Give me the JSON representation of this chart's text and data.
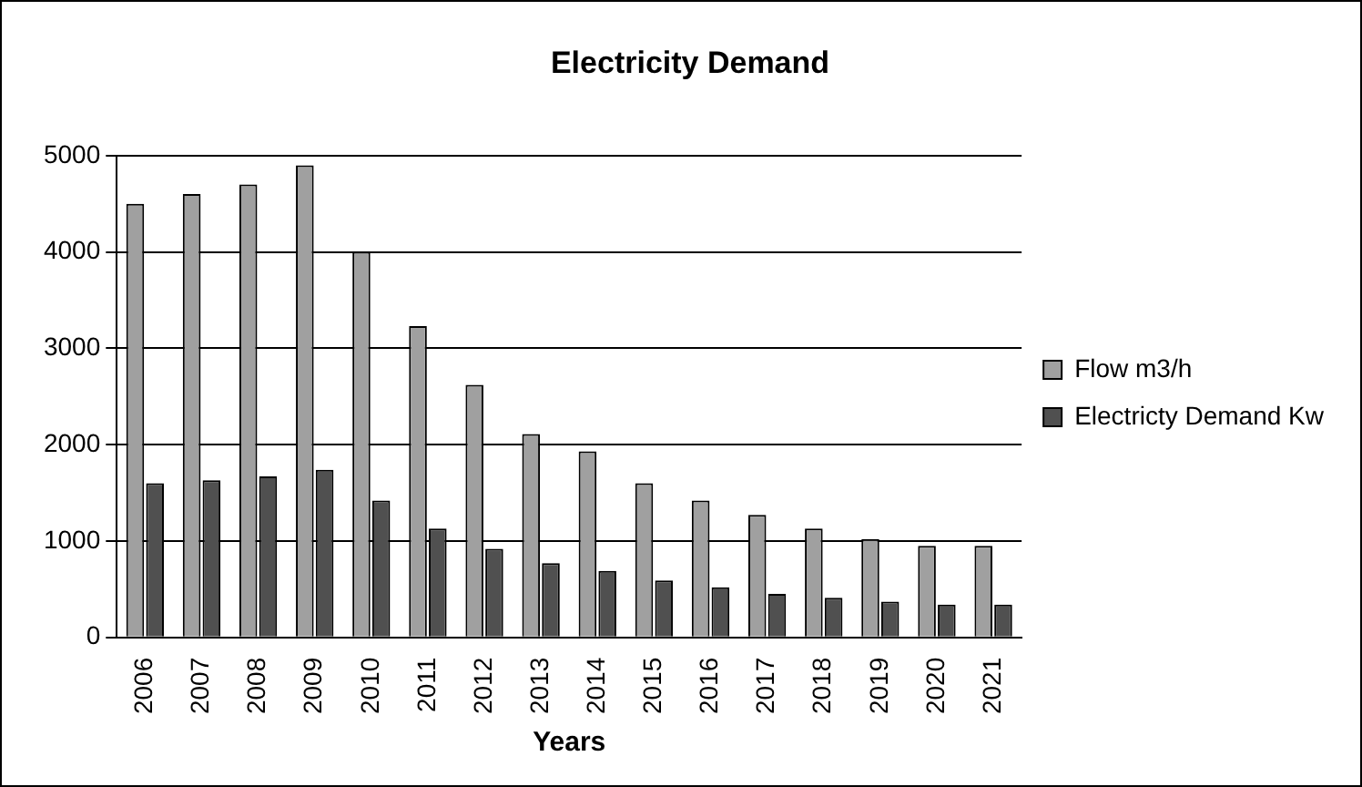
{
  "chart_data": {
    "type": "bar",
    "title": "Electricity Demand",
    "xlabel": "Years",
    "categories": [
      "2006",
      "2007",
      "2008",
      "2009",
      "2010",
      "2011",
      "2012",
      "2013",
      "2014",
      "2015",
      "2016",
      "2017",
      "2018",
      "2019",
      "2020",
      "2021"
    ],
    "series": [
      {
        "name": "Flow m3/h",
        "color": "#a0a0a0",
        "values": [
          4500,
          4600,
          4700,
          4900,
          4000,
          3230,
          2620,
          2110,
          1930,
          1600,
          1420,
          1270,
          1130,
          1020,
          950,
          950
        ]
      },
      {
        "name": "Electricty Demand Kw",
        "color": "#505050",
        "values": [
          1600,
          1630,
          1670,
          1740,
          1420,
          1130,
          920,
          770,
          690,
          590,
          520,
          450,
          410,
          370,
          340,
          340
        ]
      }
    ],
    "ylim": [
      0,
      5000
    ],
    "yticks": [
      0,
      1000,
      2000,
      3000,
      4000,
      5000
    ],
    "grid": "y",
    "legend": "right"
  }
}
